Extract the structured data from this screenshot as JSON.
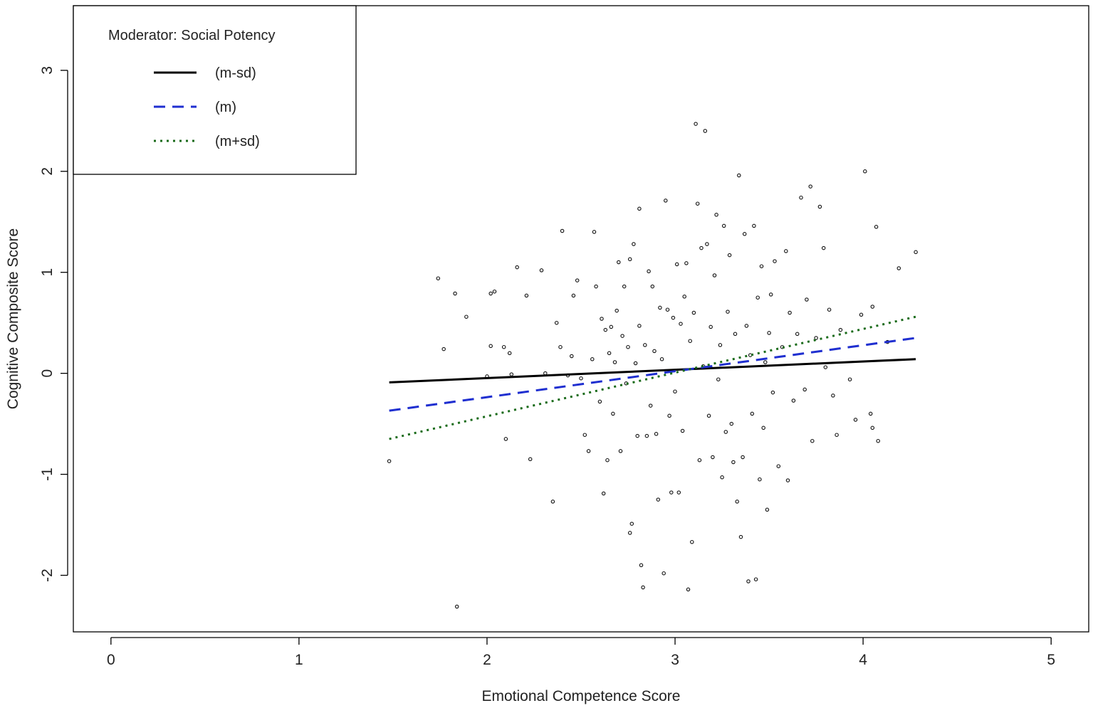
{
  "chart_data": {
    "type": "scatter",
    "xlabel": "Emotional Competence Score",
    "ylabel": "Cognitive Composite Score",
    "xlim": [
      -0.2,
      5.2
    ],
    "ylim": [
      -2.56,
      3.64
    ],
    "x_ticks": [
      0,
      1,
      2,
      3,
      4,
      5
    ],
    "y_ticks": [
      -2,
      -1,
      0,
      1,
      2,
      3
    ],
    "x_tick_labels": [
      "0",
      "1",
      "2",
      "3",
      "4",
      "5"
    ],
    "y_tick_labels": [
      "-2",
      "-1",
      "0",
      "1",
      "2",
      "3"
    ],
    "grid": false,
    "legend": {
      "placement": "top-left",
      "title": "Moderator: Social Potency",
      "entries": [
        {
          "label": "(m-sd)",
          "color": "#000000",
          "dash": "solid"
        },
        {
          "label": "(m)",
          "color": "#1f2fd0",
          "dash": "dashed"
        },
        {
          "label": "(m+sd)",
          "color": "#1a6b1a",
          "dash": "dotted"
        }
      ]
    },
    "series": [
      {
        "name": "(m-sd)",
        "type": "line",
        "color": "#000000",
        "x": [
          1.48,
          4.28
        ],
        "y": [
          -0.09,
          0.14
        ]
      },
      {
        "name": "(m)",
        "type": "line",
        "color": "#1f2fd0",
        "x": [
          1.48,
          4.28
        ],
        "y": [
          -0.37,
          0.35
        ]
      },
      {
        "name": "(m+sd)",
        "type": "line",
        "color": "#1a6b1a",
        "x": [
          1.48,
          4.28
        ],
        "y": [
          -0.65,
          0.56
        ]
      }
    ],
    "points": [
      [
        1.48,
        -0.87
      ],
      [
        1.74,
        0.94
      ],
      [
        1.77,
        0.24
      ],
      [
        1.83,
        0.79
      ],
      [
        1.84,
        -2.31
      ],
      [
        1.89,
        0.56
      ],
      [
        2.0,
        -0.03
      ],
      [
        2.02,
        0.27
      ],
      [
        2.02,
        0.79
      ],
      [
        2.04,
        0.81
      ],
      [
        2.09,
        0.26
      ],
      [
        2.1,
        -0.65
      ],
      [
        2.12,
        0.2
      ],
      [
        2.13,
        -0.01
      ],
      [
        2.16,
        1.05
      ],
      [
        2.21,
        0.77
      ],
      [
        2.23,
        -0.85
      ],
      [
        2.29,
        1.02
      ],
      [
        2.31,
        0.0
      ],
      [
        2.35,
        -1.27
      ],
      [
        2.37,
        0.5
      ],
      [
        2.39,
        0.26
      ],
      [
        2.4,
        1.41
      ],
      [
        2.43,
        -0.02
      ],
      [
        2.45,
        0.17
      ],
      [
        2.46,
        0.77
      ],
      [
        2.48,
        0.92
      ],
      [
        2.5,
        -0.05
      ],
      [
        2.52,
        -0.61
      ],
      [
        2.54,
        -0.77
      ],
      [
        2.56,
        0.14
      ],
      [
        2.57,
        1.4
      ],
      [
        2.58,
        0.86
      ],
      [
        2.6,
        -0.28
      ],
      [
        2.61,
        0.54
      ],
      [
        2.62,
        -1.19
      ],
      [
        2.63,
        0.43
      ],
      [
        2.64,
        -0.86
      ],
      [
        2.65,
        0.2
      ],
      [
        2.66,
        0.46
      ],
      [
        2.67,
        -0.4
      ],
      [
        2.68,
        0.11
      ],
      [
        2.69,
        0.62
      ],
      [
        2.7,
        1.1
      ],
      [
        2.71,
        -0.77
      ],
      [
        2.72,
        0.37
      ],
      [
        2.73,
        0.86
      ],
      [
        2.74,
        -0.1
      ],
      [
        2.75,
        0.26
      ],
      [
        2.76,
        -1.58
      ],
      [
        2.76,
        1.13
      ],
      [
        2.77,
        -1.49
      ],
      [
        2.78,
        1.28
      ],
      [
        2.79,
        0.1
      ],
      [
        2.8,
        -0.62
      ],
      [
        2.81,
        0.47
      ],
      [
        2.81,
        1.63
      ],
      [
        2.82,
        -1.9
      ],
      [
        2.83,
        -2.12
      ],
      [
        2.84,
        0.28
      ],
      [
        2.85,
        -0.62
      ],
      [
        2.86,
        1.01
      ],
      [
        2.87,
        -0.32
      ],
      [
        2.88,
        0.86
      ],
      [
        2.89,
        0.22
      ],
      [
        2.9,
        -0.6
      ],
      [
        2.91,
        -1.25
      ],
      [
        2.92,
        0.65
      ],
      [
        2.93,
        0.14
      ],
      [
        2.94,
        -1.98
      ],
      [
        2.95,
        1.71
      ],
      [
        2.96,
        0.63
      ],
      [
        2.97,
        -0.42
      ],
      [
        2.98,
        -1.18
      ],
      [
        2.99,
        0.55
      ],
      [
        3.0,
        -0.18
      ],
      [
        3.01,
        1.08
      ],
      [
        3.02,
        -1.18
      ],
      [
        3.03,
        0.49
      ],
      [
        3.04,
        -0.57
      ],
      [
        3.05,
        0.76
      ],
      [
        3.06,
        1.09
      ],
      [
        3.07,
        -2.14
      ],
      [
        3.08,
        0.32
      ],
      [
        3.09,
        -1.67
      ],
      [
        3.1,
        0.6
      ],
      [
        3.11,
        2.47
      ],
      [
        3.12,
        1.68
      ],
      [
        3.13,
        -0.86
      ],
      [
        3.14,
        1.24
      ],
      [
        3.15,
        0.07
      ],
      [
        3.16,
        2.4
      ],
      [
        3.17,
        1.28
      ],
      [
        3.18,
        -0.42
      ],
      [
        3.19,
        0.46
      ],
      [
        3.2,
        -0.83
      ],
      [
        3.21,
        0.97
      ],
      [
        3.22,
        1.57
      ],
      [
        3.23,
        -0.06
      ],
      [
        3.24,
        0.28
      ],
      [
        3.25,
        -1.03
      ],
      [
        3.26,
        1.46
      ],
      [
        3.27,
        -0.58
      ],
      [
        3.28,
        0.61
      ],
      [
        3.29,
        1.17
      ],
      [
        3.3,
        -0.5
      ],
      [
        3.31,
        -0.88
      ],
      [
        3.32,
        0.39
      ],
      [
        3.33,
        -1.27
      ],
      [
        3.34,
        1.96
      ],
      [
        3.35,
        -1.62
      ],
      [
        3.36,
        -0.83
      ],
      [
        3.37,
        1.38
      ],
      [
        3.38,
        0.47
      ],
      [
        3.39,
        -2.06
      ],
      [
        3.4,
        0.18
      ],
      [
        3.41,
        -0.4
      ],
      [
        3.42,
        1.46
      ],
      [
        3.43,
        -2.04
      ],
      [
        3.44,
        0.75
      ],
      [
        3.45,
        -1.05
      ],
      [
        3.46,
        1.06
      ],
      [
        3.47,
        -0.54
      ],
      [
        3.48,
        0.11
      ],
      [
        3.49,
        -1.35
      ],
      [
        3.5,
        0.4
      ],
      [
        3.51,
        0.78
      ],
      [
        3.52,
        -0.19
      ],
      [
        3.53,
        1.11
      ],
      [
        3.55,
        -0.92
      ],
      [
        3.57,
        0.26
      ],
      [
        3.59,
        1.21
      ],
      [
        3.6,
        -1.06
      ],
      [
        3.61,
        0.6
      ],
      [
        3.63,
        -0.27
      ],
      [
        3.65,
        0.39
      ],
      [
        3.67,
        1.74
      ],
      [
        3.69,
        -0.16
      ],
      [
        3.7,
        0.73
      ],
      [
        3.72,
        1.85
      ],
      [
        3.73,
        -0.67
      ],
      [
        3.75,
        0.35
      ],
      [
        3.77,
        1.65
      ],
      [
        3.79,
        1.24
      ],
      [
        3.8,
        0.06
      ],
      [
        3.82,
        0.63
      ],
      [
        3.84,
        -0.22
      ],
      [
        3.86,
        -0.61
      ],
      [
        3.88,
        0.43
      ],
      [
        3.93,
        -0.06
      ],
      [
        3.96,
        -0.46
      ],
      [
        3.99,
        0.58
      ],
      [
        4.01,
        2.0
      ],
      [
        4.04,
        -0.4
      ],
      [
        4.05,
        0.66
      ],
      [
        4.05,
        -0.54
      ],
      [
        4.07,
        1.45
      ],
      [
        4.08,
        -0.67
      ],
      [
        4.13,
        0.31
      ],
      [
        4.19,
        1.04
      ],
      [
        4.28,
        1.2
      ]
    ]
  }
}
